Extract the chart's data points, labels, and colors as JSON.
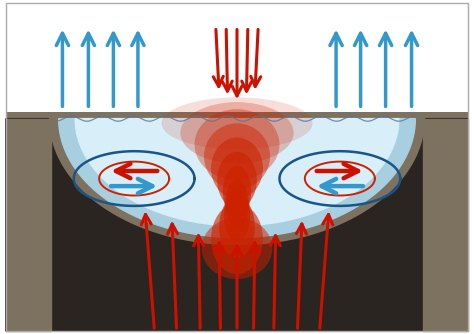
{
  "fig_width": 4.74,
  "fig_height": 3.34,
  "bg_color": "#ffffff",
  "ground_color": "#7d7260",
  "ground_dark": "#5a5248",
  "bowl_dark": "#2a2520",
  "water_outer": "#a8cfe0",
  "water_inner": "#d8eef8",
  "red_hot": "#cc2200",
  "red_light": "#ffaaaa",
  "red_arrow": "#cc1100",
  "blue_arrow": "#3399cc",
  "cell_blue": "#1a5588",
  "cell_red": "#cc2200",
  "wave_color": "#557799"
}
